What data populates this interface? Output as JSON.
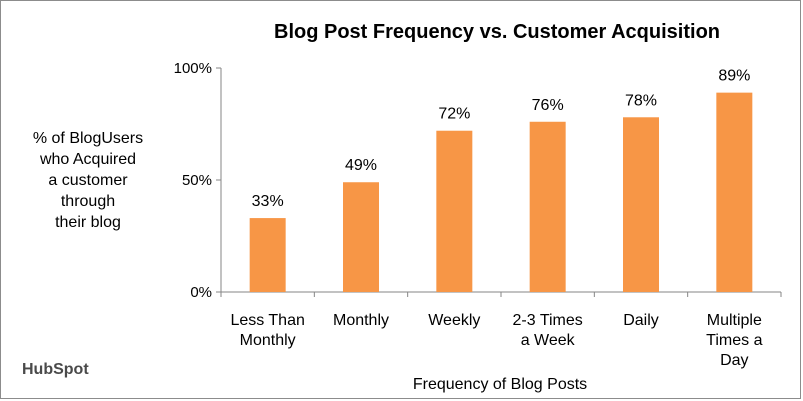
{
  "chart_data": {
    "type": "bar",
    "title": "Blog Post Frequency vs. Customer Acquisition",
    "categories": [
      [
        "Less Than",
        "Monthly"
      ],
      [
        "Monthly"
      ],
      [
        "Weekly"
      ],
      [
        "2-3 Times",
        "a Week"
      ],
      [
        "Daily"
      ],
      [
        "Multiple",
        "Times a",
        "Day"
      ]
    ],
    "values": [
      33,
      49,
      72,
      76,
      78,
      89
    ],
    "data_labels": [
      "33%",
      "49%",
      "72%",
      "76%",
      "78%",
      "89%"
    ],
    "ylim": [
      0,
      100
    ],
    "yticks": [
      {
        "value": 0,
        "label": "0%"
      },
      {
        "value": 50,
        "label": "50%"
      },
      {
        "value": 100,
        "label": "100%"
      }
    ],
    "ylabel": [
      "% of BlogUsers",
      "who Acquired",
      "a customer",
      "through",
      "their blog"
    ],
    "xlabel": "Frequency of Blog Posts",
    "bar_color": "#F79646"
  },
  "branding": {
    "logo_text": "HubSpot"
  }
}
